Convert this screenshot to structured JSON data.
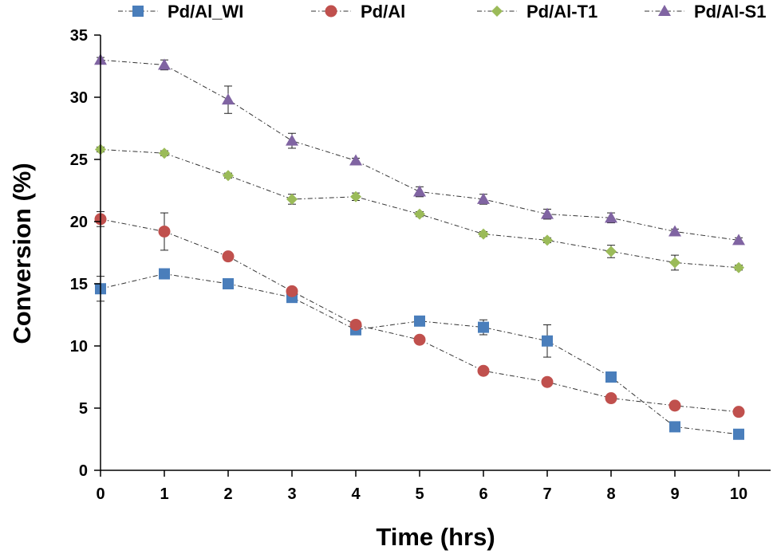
{
  "chart_data": {
    "type": "line",
    "xlabel": "Time (hrs)",
    "ylabel": "Conversion (%)",
    "xlim": [
      0,
      10
    ],
    "ylim": [
      0,
      35
    ],
    "xticks": [
      0,
      1,
      2,
      3,
      4,
      5,
      6,
      7,
      8,
      9,
      10
    ],
    "yticks": [
      0,
      5,
      10,
      15,
      20,
      25,
      30,
      35
    ],
    "grid": false,
    "legend_position": "top",
    "line_style": "dash-dot",
    "series": [
      {
        "name": "Pd/Al_WI",
        "marker": "square",
        "color": "#4a7ebb",
        "x": [
          0,
          1,
          2,
          3,
          4,
          5,
          6,
          7,
          8,
          9,
          10
        ],
        "y": [
          14.6,
          15.8,
          15.0,
          13.9,
          11.3,
          12.0,
          11.5,
          10.4,
          7.5,
          3.5,
          2.9
        ],
        "error": [
          1.0,
          0.3,
          0.2,
          0.3,
          0.3,
          0.2,
          0.6,
          1.3,
          0.2,
          0.2,
          0.2
        ]
      },
      {
        "name": "Pd/Al",
        "marker": "circle",
        "color": "#c0504d",
        "x": [
          0,
          1,
          2,
          3,
          4,
          5,
          6,
          7,
          8,
          9,
          10
        ],
        "y": [
          20.2,
          19.2,
          17.2,
          14.4,
          11.7,
          10.5,
          8.0,
          7.1,
          5.8,
          5.2,
          4.7
        ],
        "error": [
          0.6,
          1.5,
          0.2,
          0.3,
          0.2,
          0.2,
          0.2,
          0.2,
          0.2,
          0.2,
          0.2
        ]
      },
      {
        "name": "Pd/Al-T1",
        "marker": "diamond",
        "color": "#9bbb59",
        "x": [
          0,
          1,
          2,
          3,
          4,
          5,
          6,
          7,
          8,
          9,
          10
        ],
        "y": [
          25.8,
          25.5,
          23.7,
          21.8,
          22.0,
          20.6,
          19.0,
          18.5,
          17.6,
          16.7,
          16.3
        ],
        "error": [
          0.2,
          0.2,
          0.2,
          0.4,
          0.3,
          0.2,
          0.2,
          0.2,
          0.5,
          0.6,
          0.2
        ]
      },
      {
        "name": "Pd/Al-S1",
        "marker": "triangle",
        "color": "#8064a2",
        "x": [
          0,
          1,
          2,
          3,
          4,
          5,
          6,
          7,
          8,
          9,
          10
        ],
        "y": [
          33.0,
          32.6,
          29.8,
          26.5,
          24.9,
          22.4,
          21.8,
          20.6,
          20.3,
          19.2,
          18.5
        ],
        "error": [
          0.2,
          0.4,
          1.1,
          0.6,
          0.2,
          0.4,
          0.4,
          0.4,
          0.4,
          0.2,
          0.2
        ]
      }
    ]
  }
}
